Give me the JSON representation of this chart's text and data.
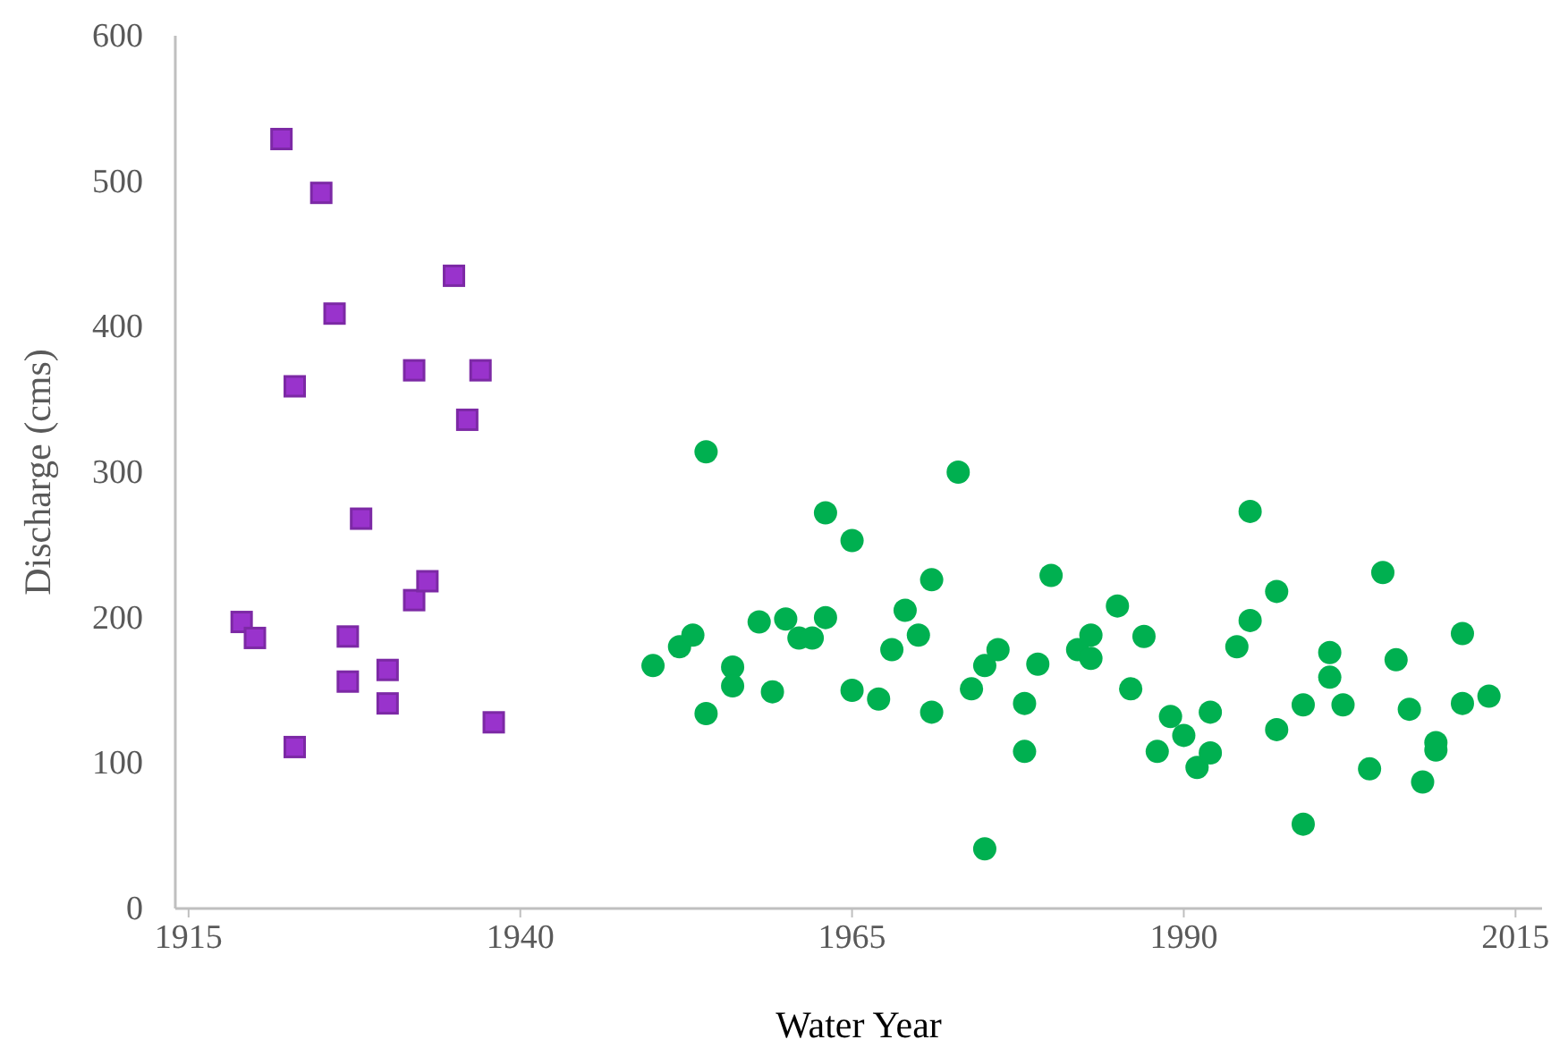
{
  "chart_data": {
    "type": "scatter",
    "xlabel": "Water Year",
    "ylabel": "Discharge (cms)",
    "xlim": [
      1914,
      2017
    ],
    "xticks": [
      1915,
      1940,
      1965,
      1990,
      2015
    ],
    "ylim": [
      0,
      600
    ],
    "yticks": [
      0,
      100,
      200,
      300,
      400,
      500,
      600
    ],
    "grid": false,
    "series": [
      {
        "color": "#9933cc",
        "marker": "square",
        "x": [
          1919,
          1920,
          1922,
          1923,
          1923,
          1925,
          1926,
          1927,
          1927,
          1928,
          1930,
          1930,
          1932,
          1932,
          1933,
          1935,
          1936,
          1937,
          1938
        ],
        "values": [
          197,
          186,
          529,
          359,
          111,
          492,
          409,
          187,
          156,
          268,
          164,
          141,
          370,
          212,
          225,
          435,
          336,
          370,
          128
        ]
      },
      {
        "color": "#00b050",
        "marker": "circle",
        "x": [
          1950,
          1952,
          1953,
          1954,
          1954,
          1956,
          1956,
          1958,
          1959,
          1960,
          1961,
          1962,
          1963,
          1963,
          1965,
          1965,
          1967,
          1968,
          1969,
          1970,
          1971,
          1971,
          1973,
          1974,
          1975,
          1975,
          1976,
          1978,
          1978,
          1979,
          1980,
          1982,
          1983,
          1983,
          1985,
          1986,
          1987,
          1988,
          1989,
          1990,
          1991,
          1992,
          1992,
          1994,
          1995,
          1995,
          1997,
          1997,
          1999,
          1999,
          2001,
          2001,
          2002,
          2004,
          2005,
          2006,
          2007,
          2008,
          2009,
          2009,
          2011,
          2011,
          2013
        ],
        "values": [
          167,
          180,
          188,
          314,
          134,
          166,
          153,
          197,
          149,
          199,
          186,
          186,
          200,
          272,
          253,
          150,
          144,
          178,
          205,
          188,
          226,
          135,
          300,
          151,
          167,
          41,
          178,
          141,
          108,
          168,
          229,
          178,
          188,
          172,
          208,
          151,
          187,
          108,
          132,
          119,
          97,
          135,
          107,
          180,
          273,
          198,
          218,
          123,
          140,
          58,
          176,
          159,
          140,
          96,
          231,
          171,
          137,
          87,
          114,
          109,
          189,
          141,
          146
        ]
      }
    ]
  }
}
